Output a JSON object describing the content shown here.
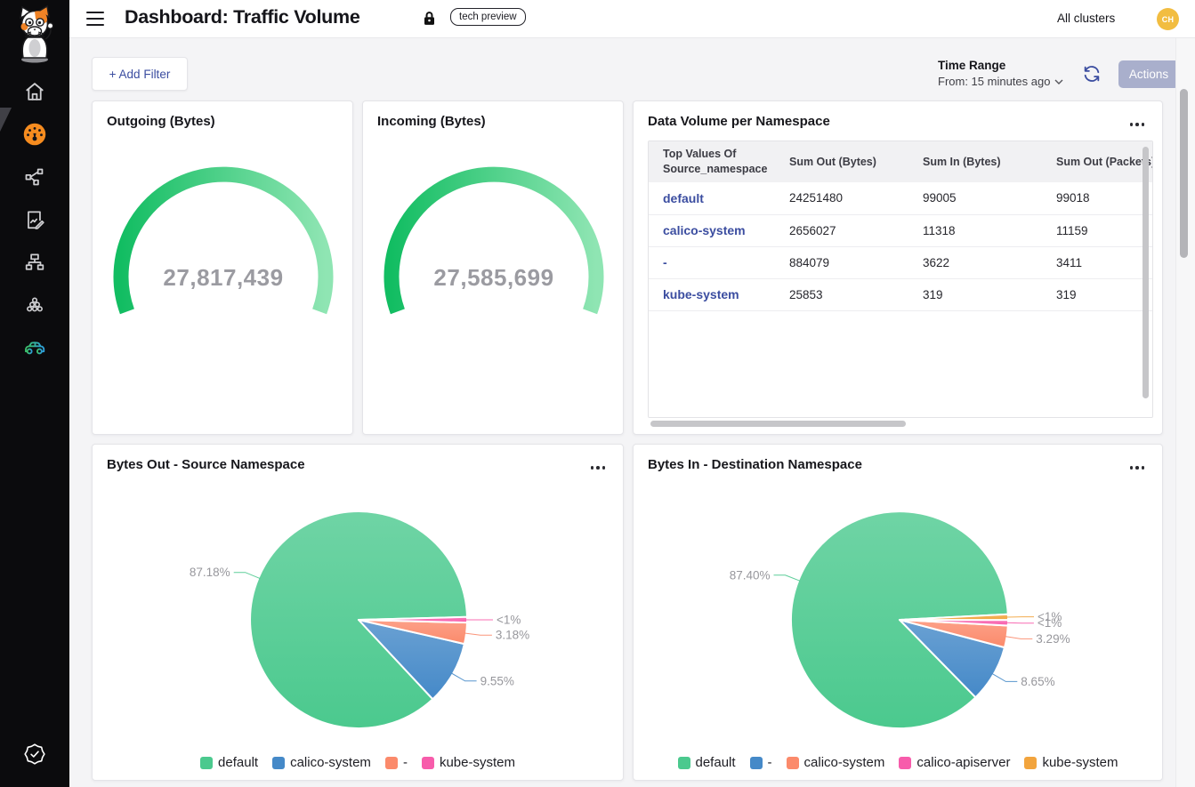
{
  "header": {
    "title": "Dashboard: Traffic Volume",
    "badge": "tech preview",
    "clusters": "All clusters",
    "avatar_initials": "CH"
  },
  "toolbar": {
    "add_filter": "+ Add Filter",
    "time_range_label": "Time Range",
    "time_range_value": "From: 15 minutes ago",
    "actions": "Actions"
  },
  "sidebar": {
    "icons": [
      "calico-cat-logo",
      "home-icon",
      "dashboards-gauge-icon",
      "service-graph-icon",
      "reports-icon",
      "network-sitemap-icon",
      "cluster-nodes-icon",
      "car-icon",
      "verified-badge-icon"
    ],
    "active_item": "dashboards-gauge-icon",
    "active_color": "#f68c1f"
  },
  "table_card": {
    "title": "Data Volume per Namespace",
    "columns": [
      "Top Values Of Source_namespace",
      "Sum Out (Bytes)",
      "Sum In (Bytes)",
      "Sum Out (Packets)"
    ],
    "rows": [
      {
        "namespace": "default",
        "sum_out_bytes": "24251480",
        "sum_in_bytes": "99005",
        "sum_out_packets": "99018"
      },
      {
        "namespace": "calico-system",
        "sum_out_bytes": "2656027",
        "sum_in_bytes": "11318",
        "sum_out_packets": "11159"
      },
      {
        "namespace": "-",
        "sum_out_bytes": "884079",
        "sum_in_bytes": "3622",
        "sum_out_packets": "3411"
      },
      {
        "namespace": "kube-system",
        "sum_out_bytes": "25853",
        "sum_in_bytes": "319",
        "sum_out_packets": "319"
      }
    ],
    "link_color": "#3b4da0"
  },
  "chart_data": [
    {
      "type": "gauge",
      "title": "Outgoing (Bytes)",
      "value": 27817439,
      "display": "27,817,439",
      "color_start": "#12bd62",
      "color_end": "#8fe5b3"
    },
    {
      "type": "gauge",
      "title": "Incoming (Bytes)",
      "value": 27585699,
      "display": "27,585,699",
      "color_start": "#12bd62",
      "color_end": "#8fe5b3"
    },
    {
      "type": "pie",
      "title": "Bytes Out - Source Namespace",
      "legend_position": "bottom",
      "start_deg": 1.5,
      "min_deg": 3,
      "slices": [
        {
          "name": "default",
          "pct": 87.18,
          "label": "87.18%",
          "color": "#4bc98e"
        },
        {
          "name": "calico-system",
          "pct": 9.55,
          "label": "9.55%",
          "color": "#4589c8"
        },
        {
          "name": "-",
          "pct": 3.18,
          "label": "3.18%",
          "color": "#fb8a6b"
        },
        {
          "name": "kube-system",
          "pct": 0.09,
          "label": "<1%",
          "color": "#f75cab"
        }
      ]
    },
    {
      "type": "pie",
      "title": "Bytes In - Destination Namespace",
      "legend_position": "bottom",
      "start_deg": 2.9,
      "min_deg": 3,
      "slices": [
        {
          "name": "default",
          "pct": 87.4,
          "label": "87.40%",
          "color": "#4bc98e"
        },
        {
          "name": "-",
          "pct": 8.65,
          "label": "8.65%",
          "color": "#4589c8"
        },
        {
          "name": "calico-system",
          "pct": 3.29,
          "label": "3.29%",
          "color": "#fb8a6b"
        },
        {
          "name": "calico-apiserver",
          "pct": 0.36,
          "label": "<1%",
          "color": "#f75cab"
        },
        {
          "name": "kube-system",
          "pct": 0.3,
          "label": "<1%",
          "color": "#f2a43d"
        }
      ]
    },
    {
      "type": "table",
      "title": "Data Volume per Namespace",
      "columns": [
        "Top Values Of Source_namespace",
        "Sum Out (Bytes)",
        "Sum In (Bytes)",
        "Sum Out (Packets)"
      ],
      "rows": [
        [
          "default",
          24251480,
          99005,
          99018
        ],
        [
          "calico-system",
          2656027,
          11318,
          11159
        ],
        [
          "-",
          884079,
          3622,
          3411
        ],
        [
          "kube-system",
          25853,
          319,
          319
        ]
      ]
    }
  ],
  "misc": {
    "label_gray": "#97979c",
    "gauge_value_gray": "#9b9ba1"
  }
}
